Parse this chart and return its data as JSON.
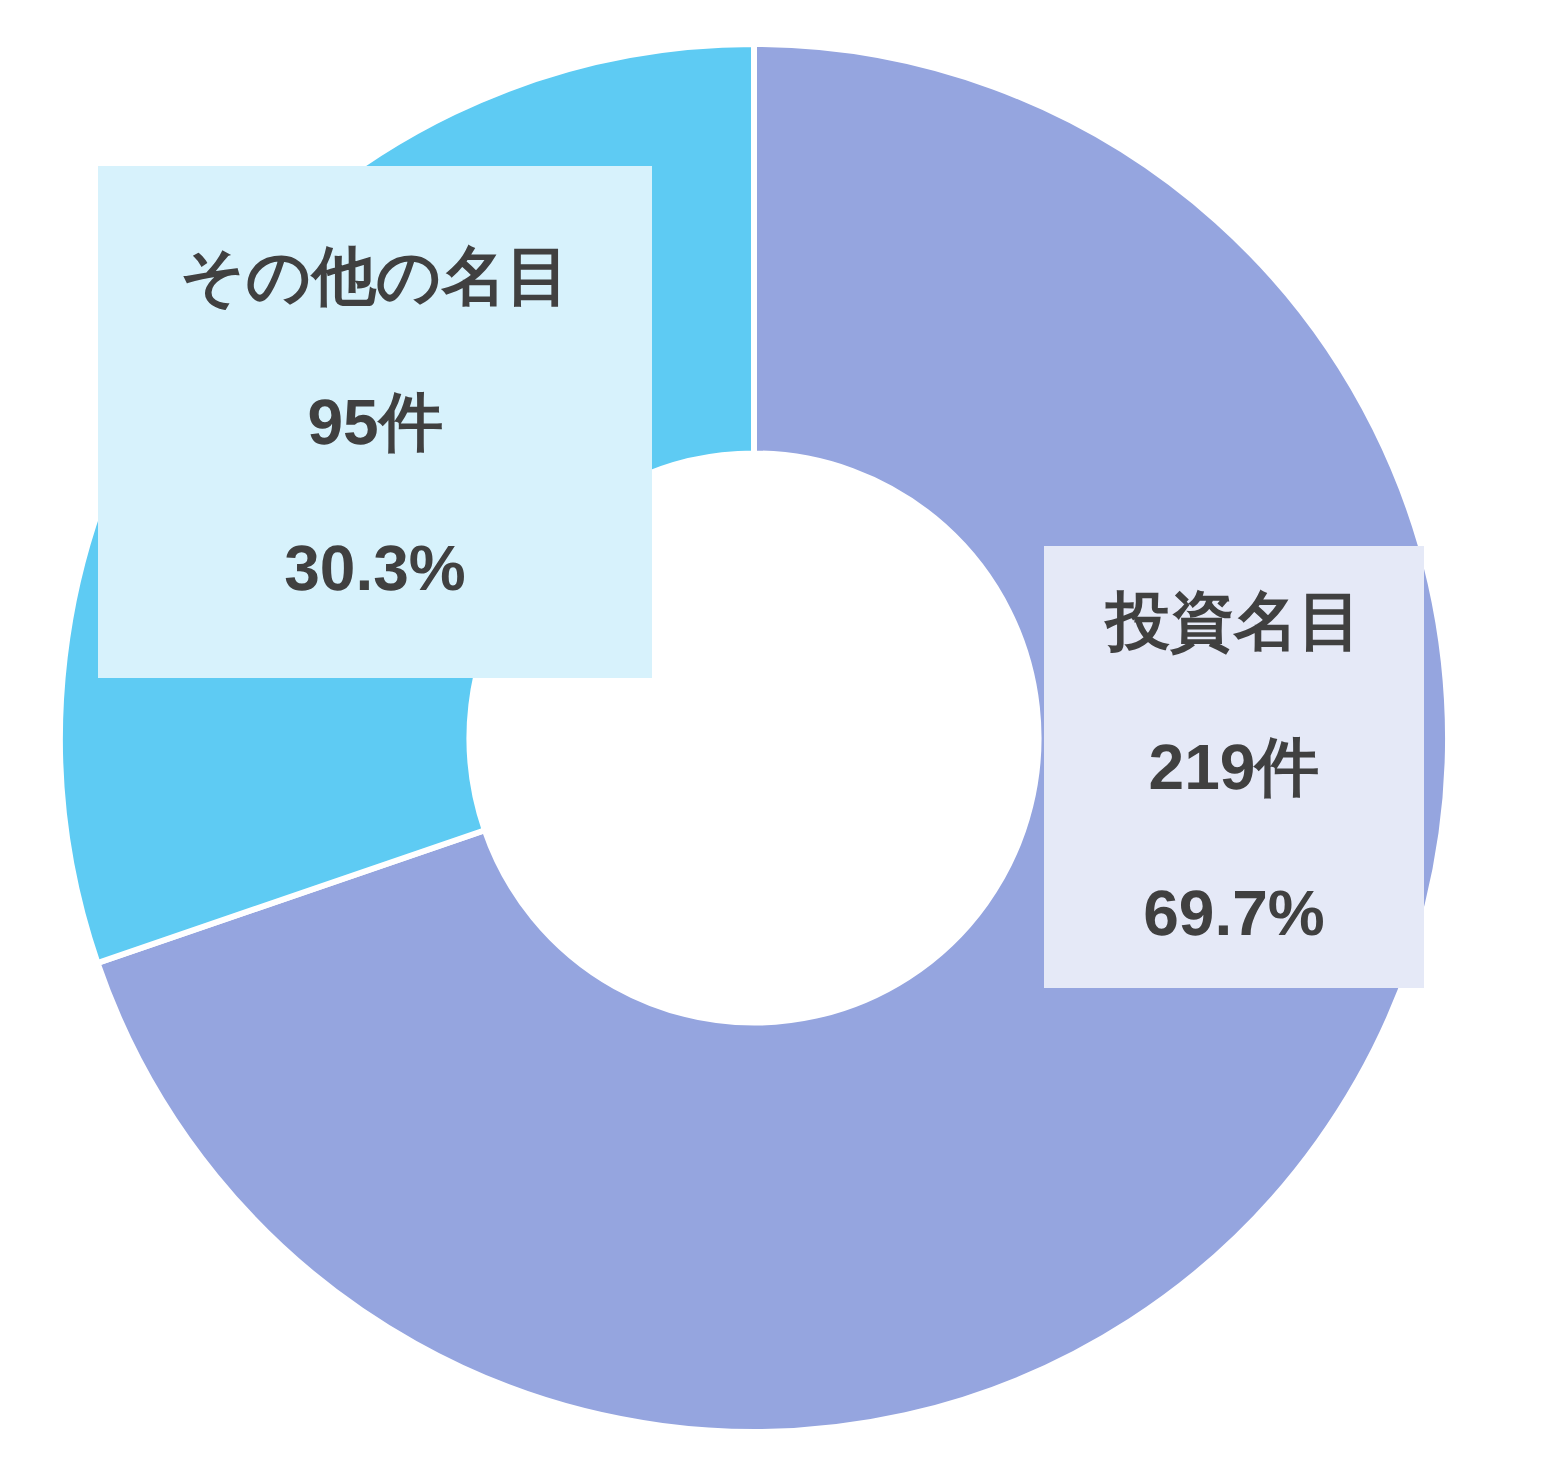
{
  "chart_data": {
    "type": "donut",
    "categories": [
      "投資名目",
      "その他の名目"
    ],
    "values": [
      219,
      95
    ],
    "colors": [
      "#95a5df",
      "#5ecbf3"
    ],
    "value_labels": [
      "219件",
      "95件"
    ],
    "annotations": [
      {
        "text": "69.7%",
        "x": "投資名目"
      },
      {
        "text": "30.3%",
        "x": "その他の名目"
      }
    ],
    "legend": false
  }
}
